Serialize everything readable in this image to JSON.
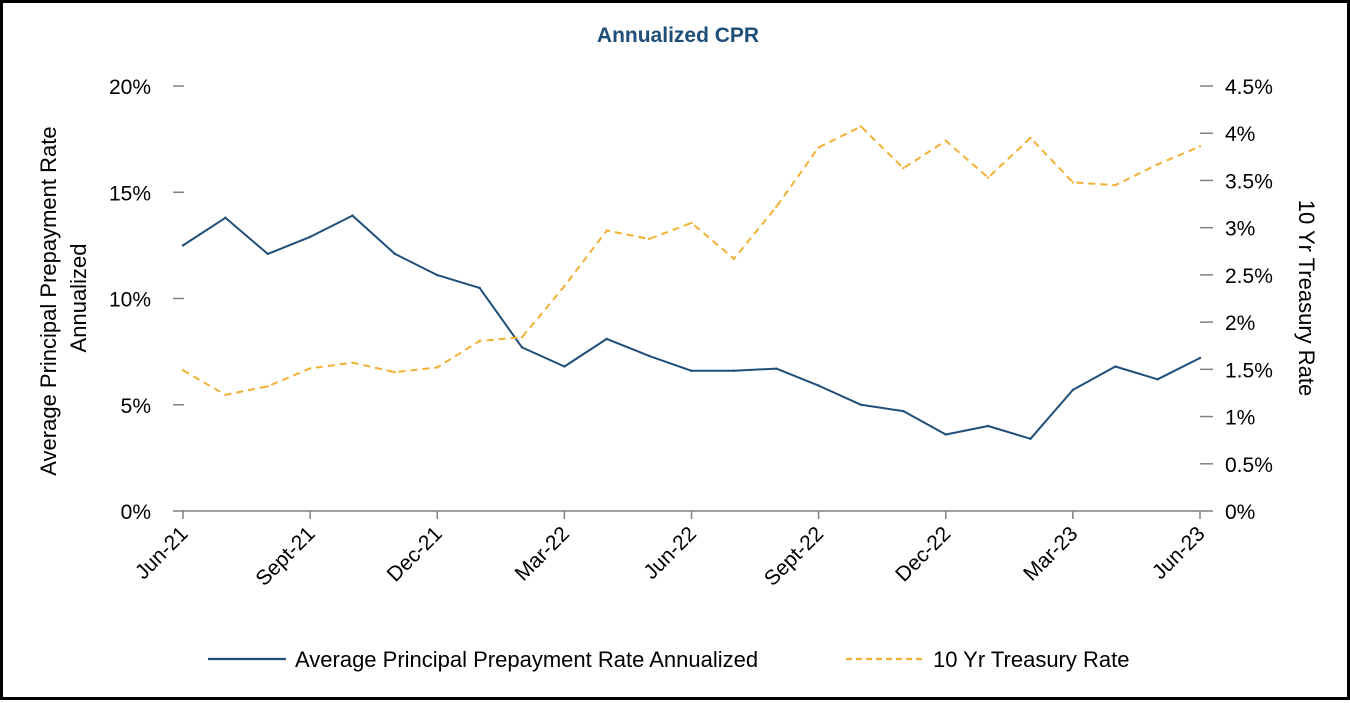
{
  "chart_data": {
    "type": "line",
    "title": "Annualized CPR",
    "title_color": "#1F4E79",
    "ylabel_left": [
      "Average Principal Prepayment Rate",
      "Annualized"
    ],
    "ylabel_right": "10 Yr Treasury Rate",
    "xlabel": "",
    "x_tick_labels": [
      "Jun-21",
      "Sept-21",
      "Dec-21",
      "Mar-22",
      "Jun-22",
      "Sept-22",
      "Dec-22",
      "Mar-23",
      "Jun-23"
    ],
    "y_left_ticks": [
      "20%",
      "15%",
      "10%",
      "5%",
      "0%"
    ],
    "y_right_ticks": [
      "4.5%",
      "4%",
      "3.5%",
      "3%",
      "2.5%",
      "2%",
      "1.5%",
      "1%",
      "0.5%",
      "0%"
    ],
    "ylim_left": [
      0,
      20
    ],
    "ylim_right": [
      0,
      4.5
    ],
    "x_months": 24,
    "series": [
      {
        "name": "Average Principal Prepayment Rate Annualized",
        "axis": "left",
        "color": "#1F4E79",
        "style": "solid",
        "values": [
          12.5,
          13.8,
          12.1,
          12.9,
          13.9,
          12.1,
          11.1,
          10.5,
          7.7,
          6.8,
          8.1,
          7.3,
          6.6,
          6.6,
          6.7,
          5.9,
          5.0,
          4.7,
          3.6,
          4.0,
          3.4,
          5.7,
          6.8,
          6.2,
          7.2
        ]
      },
      {
        "name": "10 Yr Treasury Rate",
        "axis": "right",
        "color": "#F2B134",
        "style": "dashed",
        "values": [
          1.49,
          1.23,
          1.32,
          1.51,
          1.57,
          1.47,
          1.52,
          1.8,
          1.84,
          2.38,
          2.97,
          2.88,
          3.05,
          2.67,
          3.22,
          3.85,
          4.07,
          3.63,
          3.92,
          3.53,
          3.95,
          3.48,
          3.45,
          3.67,
          3.86
        ]
      }
    ],
    "legend_position": "bottom"
  }
}
